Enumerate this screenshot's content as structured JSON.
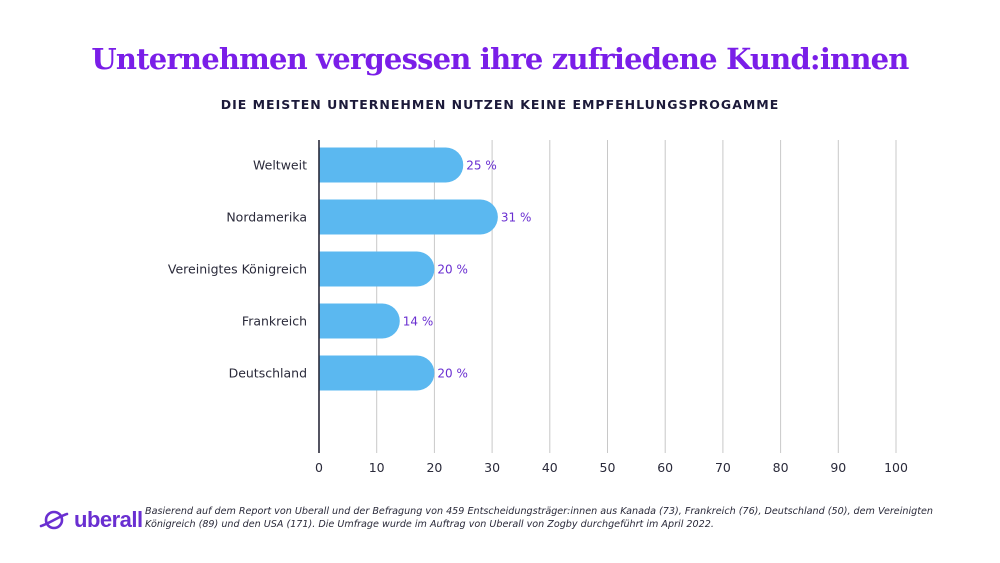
{
  "header": {
    "title": "Unternehmen vergessen ihre zufriedene Kund:innen",
    "subtitle": "DIE MEISTEN UNTERNEHMEN NUTZEN KEINE EMPFEHLUNGSPROGAMME"
  },
  "chart_data": {
    "type": "bar",
    "orientation": "horizontal",
    "categories": [
      "Weltweit",
      "Nordamerika",
      "Vereinigtes Königreich",
      "Frankreich",
      "Deutschland"
    ],
    "values": [
      25,
      31,
      20,
      14,
      20
    ],
    "value_labels": [
      "25 %",
      "31 %",
      "20 %",
      "14 %",
      "20 %"
    ],
    "xlim": [
      0,
      100
    ],
    "x_ticks": [
      0,
      10,
      20,
      30,
      40,
      50,
      60,
      70,
      80,
      90,
      100
    ],
    "grid": true,
    "bar_color": "#5bb8f0",
    "label_color": "#6a2fd1"
  },
  "footer": {
    "logo_text": "uberall",
    "logo_icon": "planet-ring-icon",
    "note": "Basierend auf dem Report von Uberall und der Befragung von 459 Entscheidungsträger:innen aus Kanada (73), Frankreich (76), Deutschland (50), dem Vereinigten Königreich (89) und den USA (171). Die Umfrage wurde im Auftrag von Uberall von Zogby durchgeführt im April 2022."
  },
  "colors": {
    "title": "#7a1ee8",
    "subtitle": "#1c1a3a",
    "axis": "#2a2a3a",
    "grid": "#c8c8c8"
  }
}
